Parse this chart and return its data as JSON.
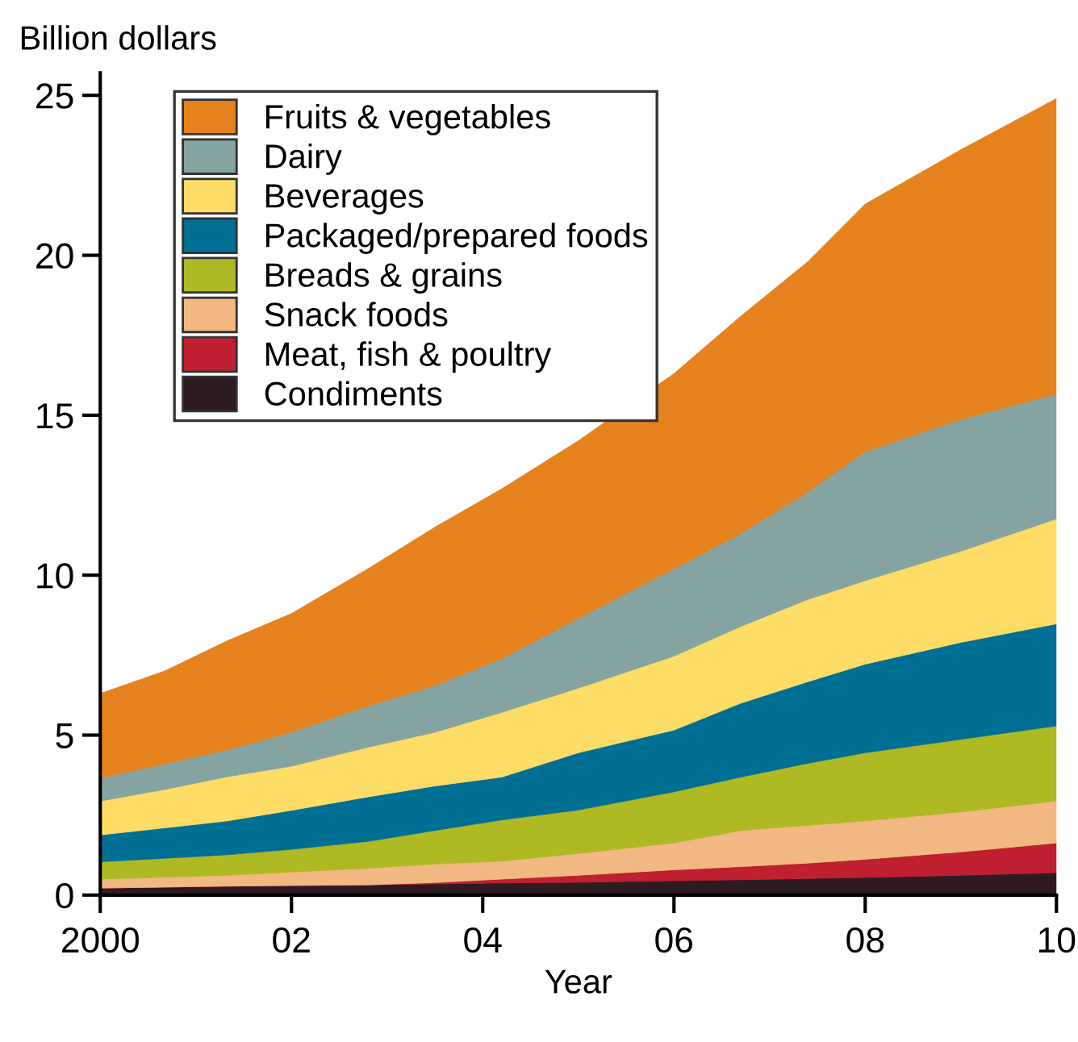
{
  "chart_data": {
    "type": "area",
    "stacked": true,
    "xlabel": "Year",
    "ylabel": "Billion dollars",
    "x": [
      2000,
      2000.67,
      2001.33,
      2002,
      2002.8,
      2003.5,
      2004.2,
      2005,
      2006,
      2006.7,
      2007.4,
      2008,
      2009,
      2010
    ],
    "xlim": [
      2000,
      2010
    ],
    "xticks": [
      {
        "value": 2000,
        "label": "2000"
      },
      {
        "value": 2002,
        "label": "02"
      },
      {
        "value": 2004,
        "label": "04"
      },
      {
        "value": 2006,
        "label": "06"
      },
      {
        "value": 2008,
        "label": "08"
      },
      {
        "value": 2010,
        "label": "10"
      }
    ],
    "ylim": [
      0,
      25.7
    ],
    "yticks": [
      0,
      5,
      10,
      15,
      20,
      25
    ],
    "grid": false,
    "legend": "top left",
    "series": [
      {
        "name": "Condiments",
        "color": "#2e1b22",
        "values": [
          0.22,
          0.25,
          0.28,
          0.3,
          0.32,
          0.35,
          0.38,
          0.4,
          0.45,
          0.48,
          0.52,
          0.55,
          0.62,
          0.7
        ]
      },
      {
        "name": "Meat, fish & poultry",
        "color": "#c01f2f",
        "values": [
          0,
          0,
          0,
          0,
          0,
          0.04,
          0.12,
          0.22,
          0.34,
          0.41,
          0.48,
          0.57,
          0.73,
          0.93
        ]
      },
      {
        "name": "Snack foods",
        "color": "#f1b882",
        "values": [
          0.28,
          0.31,
          0.34,
          0.42,
          0.52,
          0.58,
          0.56,
          0.68,
          0.84,
          1.13,
          1.18,
          1.2,
          1.25,
          1.31
        ]
      },
      {
        "name": "Breads & grains",
        "color": "#aeb924",
        "values": [
          0.54,
          0.59,
          0.64,
          0.71,
          0.84,
          1.05,
          1.29,
          1.36,
          1.6,
          1.67,
          1.94,
          2.13,
          2.27,
          2.35
        ]
      },
      {
        "name": "Packaged/prepared foods",
        "color": "#006f94",
        "values": [
          0.84,
          0.95,
          1.06,
          1.22,
          1.39,
          1.39,
          1.34,
          1.79,
          1.93,
          2.31,
          2.55,
          2.77,
          3.03,
          3.19
        ]
      },
      {
        "name": "Beverages",
        "color": "#fddd66",
        "values": [
          1.06,
          1.2,
          1.38,
          1.38,
          1.55,
          1.68,
          2.02,
          2.02,
          2.31,
          2.4,
          2.57,
          2.61,
          2.85,
          3.28
        ]
      },
      {
        "name": "Dairy",
        "color": "#84a3a1",
        "values": [
          0.72,
          0.8,
          0.84,
          1.06,
          1.29,
          1.46,
          1.68,
          2.18,
          2.73,
          2.9,
          3.36,
          4.03,
          4.12,
          3.9
        ]
      },
      {
        "name": "Fruits & vegetables",
        "color": "#e5821e",
        "values": [
          2.64,
          2.9,
          3.41,
          3.71,
          4.29,
          4.95,
          5.31,
          5.55,
          6.1,
          6.8,
          7.2,
          7.74,
          8.43,
          9.24
        ]
      }
    ]
  }
}
